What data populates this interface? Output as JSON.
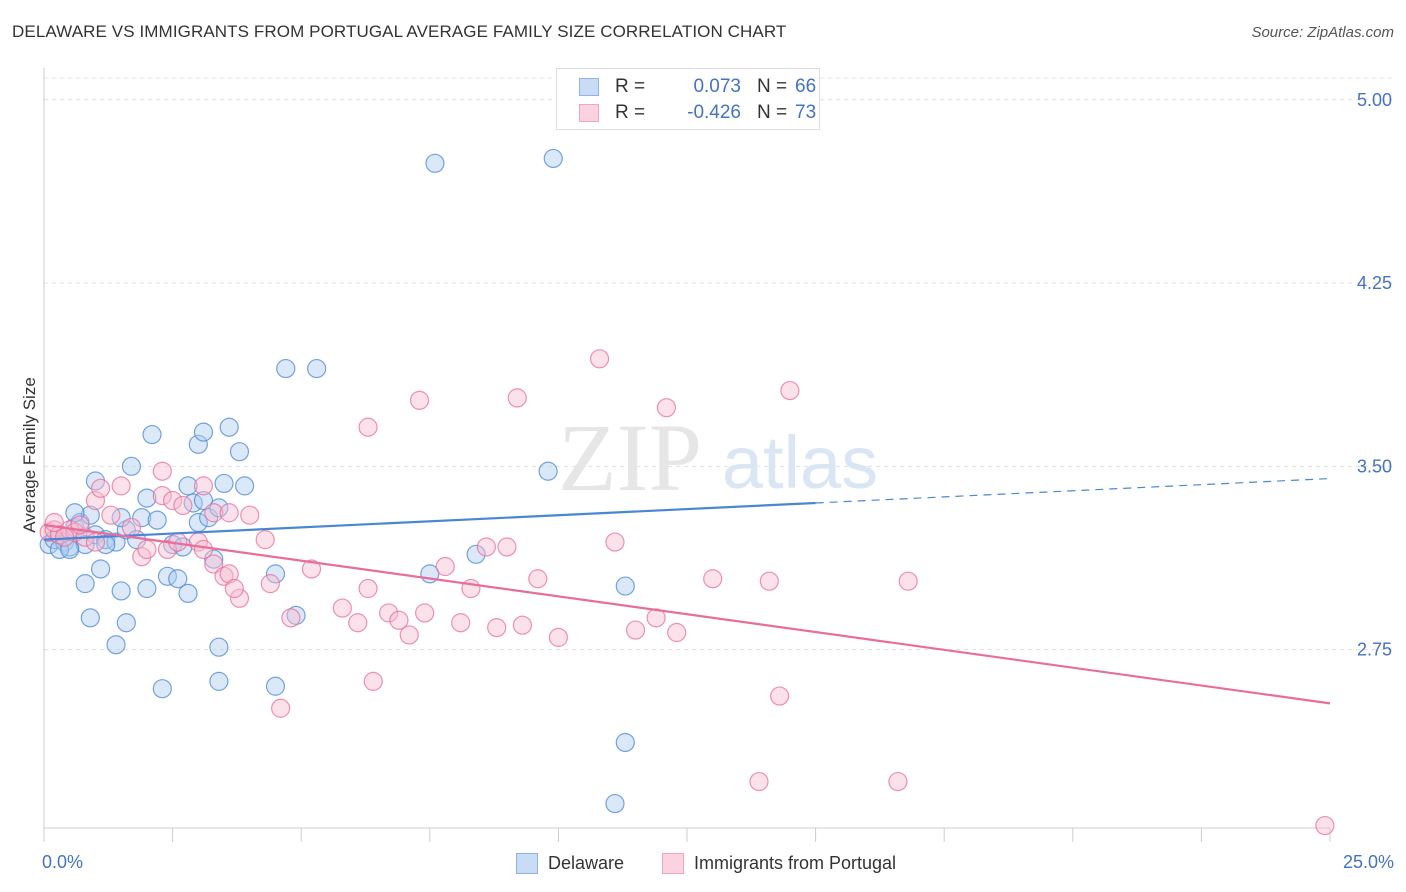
{
  "header": {
    "title": "DELAWARE VS IMMIGRANTS FROM PORTUGAL AVERAGE FAMILY SIZE CORRELATION CHART",
    "source": "Source: ZipAtlas.com"
  },
  "watermark": {
    "zip": "ZIP",
    "atlas": "atlas"
  },
  "legend_top": [
    {
      "r_label": "R =",
      "r_value": "0.073",
      "n_label": "N =",
      "n_value": "66",
      "color": "#8fb3e8"
    },
    {
      "r_label": "R =",
      "r_value": "-0.426",
      "n_label": "N =",
      "n_value": "73",
      "color": "#f2a3bd"
    }
  ],
  "legend_bottom": [
    {
      "label": "Delaware",
      "color": "#8fb3e8"
    },
    {
      "label": "Immigrants from Portugal",
      "color": "#f2a3bd"
    }
  ],
  "chart_data": {
    "type": "scatter",
    "ylabel": "Average Family Size",
    "xlim": [
      0,
      25
    ],
    "ylim": [
      2.02,
      5.13
    ],
    "x_tick_labels": [
      "0.0%",
      "25.0%"
    ],
    "y_ticks": [
      2.75,
      3.5,
      4.25,
      5.0
    ],
    "y_tick_labels": [
      "2.75",
      "3.50",
      "4.25",
      "5.00"
    ],
    "grid": true,
    "series": [
      {
        "name": "Delaware",
        "color": "#4a86d6",
        "fill": "#aecbf0",
        "points": [
          [
            0.1,
            3.18
          ],
          [
            0.2,
            3.2
          ],
          [
            0.3,
            3.22
          ],
          [
            0.4,
            3.19
          ],
          [
            0.5,
            3.17
          ],
          [
            0.6,
            3.25
          ],
          [
            0.7,
            3.27
          ],
          [
            0.8,
            3.18
          ],
          [
            1.0,
            3.22
          ],
          [
            1.2,
            3.2
          ],
          [
            1.4,
            3.19
          ],
          [
            0.9,
            3.3
          ],
          [
            0.6,
            3.31
          ],
          [
            1.6,
            3.24
          ],
          [
            1.8,
            3.2
          ],
          [
            1.2,
            3.18
          ],
          [
            1.5,
            3.29
          ],
          [
            2.0,
            3.37
          ],
          [
            1.9,
            3.29
          ],
          [
            2.2,
            3.28
          ],
          [
            2.5,
            3.18
          ],
          [
            2.7,
            3.17
          ],
          [
            2.8,
            3.42
          ],
          [
            2.9,
            3.35
          ],
          [
            3.1,
            3.36
          ],
          [
            3.0,
            3.27
          ],
          [
            3.2,
            3.29
          ],
          [
            3.4,
            3.33
          ],
          [
            3.3,
            3.12
          ],
          [
            1.0,
            3.44
          ],
          [
            1.7,
            3.5
          ],
          [
            2.1,
            3.63
          ],
          [
            3.0,
            3.59
          ],
          [
            3.1,
            3.64
          ],
          [
            3.6,
            3.66
          ],
          [
            3.8,
            3.56
          ],
          [
            3.9,
            3.42
          ],
          [
            3.5,
            3.43
          ],
          [
            1.1,
            3.08
          ],
          [
            1.5,
            2.99
          ],
          [
            0.8,
            3.02
          ],
          [
            2.0,
            3.0
          ],
          [
            2.4,
            3.05
          ],
          [
            2.6,
            3.04
          ],
          [
            2.8,
            2.98
          ],
          [
            1.6,
            2.86
          ],
          [
            1.4,
            2.77
          ],
          [
            0.9,
            2.88
          ],
          [
            3.4,
            2.76
          ],
          [
            4.5,
            3.06
          ],
          [
            4.9,
            2.89
          ],
          [
            4.7,
            3.9
          ],
          [
            5.3,
            3.9
          ],
          [
            7.5,
            3.06
          ],
          [
            8.4,
            3.14
          ],
          [
            9.8,
            3.48
          ],
          [
            11.3,
            3.01
          ],
          [
            11.3,
            2.37
          ],
          [
            11.1,
            2.12
          ],
          [
            7.6,
            4.74
          ],
          [
            9.9,
            4.76
          ],
          [
            2.3,
            2.59
          ],
          [
            3.4,
            2.62
          ],
          [
            4.5,
            2.6
          ],
          [
            0.3,
            3.16
          ],
          [
            0.5,
            3.16
          ]
        ],
        "trend": {
          "x0": 0.0,
          "y0": 3.2,
          "x1": 15.0,
          "y1": 3.35,
          "dash_x1": 25.0,
          "dash_y1": 3.45
        }
      },
      {
        "name": "Immigrants from Portugal",
        "color": "#e86d99",
        "fill": "#f6bcd0",
        "points": [
          [
            0.1,
            3.23
          ],
          [
            0.2,
            3.24
          ],
          [
            0.3,
            3.22
          ],
          [
            0.5,
            3.24
          ],
          [
            0.6,
            3.23
          ],
          [
            0.8,
            3.21
          ],
          [
            1.0,
            3.19
          ],
          [
            0.4,
            3.21
          ],
          [
            1.0,
            3.36
          ],
          [
            1.1,
            3.41
          ],
          [
            1.3,
            3.3
          ],
          [
            1.5,
            3.42
          ],
          [
            1.7,
            3.25
          ],
          [
            1.9,
            3.13
          ],
          [
            2.3,
            3.38
          ],
          [
            2.5,
            3.36
          ],
          [
            2.3,
            3.48
          ],
          [
            2.7,
            3.34
          ],
          [
            3.1,
            3.42
          ],
          [
            3.3,
            3.31
          ],
          [
            3.6,
            3.31
          ],
          [
            4.0,
            3.3
          ],
          [
            2.0,
            3.16
          ],
          [
            2.4,
            3.16
          ],
          [
            2.6,
            3.19
          ],
          [
            3.0,
            3.19
          ],
          [
            3.1,
            3.16
          ],
          [
            3.3,
            3.1
          ],
          [
            3.5,
            3.05
          ],
          [
            3.6,
            3.06
          ],
          [
            3.8,
            2.96
          ],
          [
            3.7,
            3.0
          ],
          [
            4.3,
            3.2
          ],
          [
            4.4,
            3.02
          ],
          [
            4.8,
            2.88
          ],
          [
            5.2,
            3.08
          ],
          [
            5.8,
            2.92
          ],
          [
            6.1,
            2.86
          ],
          [
            6.3,
            3.0
          ],
          [
            6.7,
            2.9
          ],
          [
            6.9,
            2.87
          ],
          [
            7.1,
            2.81
          ],
          [
            7.4,
            2.9
          ],
          [
            7.8,
            3.09
          ],
          [
            8.1,
            2.86
          ],
          [
            8.3,
            3.0
          ],
          [
            8.6,
            3.17
          ],
          [
            9.0,
            3.17
          ],
          [
            8.8,
            2.84
          ],
          [
            9.3,
            2.85
          ],
          [
            9.6,
            3.04
          ],
          [
            10.0,
            2.8
          ],
          [
            11.1,
            3.19
          ],
          [
            11.5,
            2.83
          ],
          [
            11.9,
            2.88
          ],
          [
            12.3,
            2.82
          ],
          [
            13.0,
            3.04
          ],
          [
            14.1,
            3.03
          ],
          [
            14.3,
            2.56
          ],
          [
            16.8,
            3.03
          ],
          [
            6.3,
            3.66
          ],
          [
            7.3,
            3.77
          ],
          [
            9.2,
            3.78
          ],
          [
            10.8,
            3.94
          ],
          [
            12.1,
            3.74
          ],
          [
            14.5,
            3.81
          ],
          [
            4.6,
            2.51
          ],
          [
            6.4,
            2.62
          ],
          [
            13.9,
            2.21
          ],
          [
            16.6,
            2.21
          ],
          [
            24.9,
            2.03
          ],
          [
            0.7,
            3.26
          ],
          [
            0.2,
            3.27
          ]
        ],
        "trend": {
          "x0": 0.0,
          "y0": 3.26,
          "x1": 25.0,
          "y1": 2.53
        }
      }
    ]
  }
}
